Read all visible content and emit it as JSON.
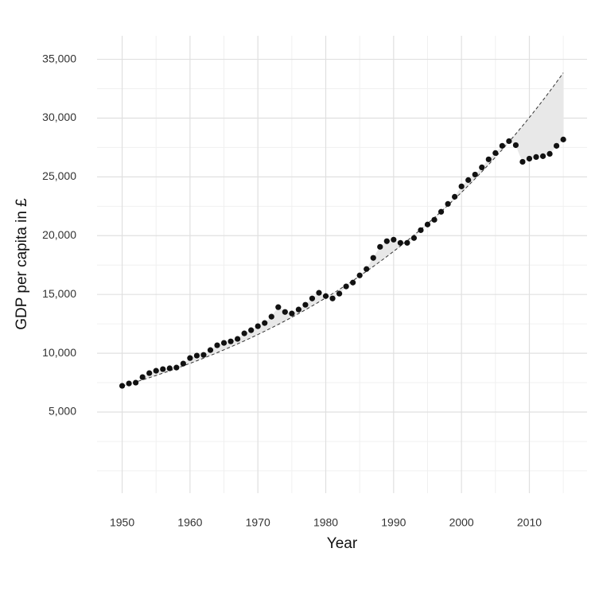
{
  "chart_data": {
    "type": "scatter",
    "x_label": "Year",
    "y_label": "GDP per capita in £",
    "x": [
      1950,
      1951,
      1952,
      1953,
      1954,
      1955,
      1956,
      1957,
      1958,
      1959,
      1960,
      1961,
      1962,
      1963,
      1964,
      1965,
      1966,
      1967,
      1968,
      1969,
      1970,
      1971,
      1972,
      1973,
      1974,
      1975,
      1976,
      1977,
      1978,
      1979,
      1980,
      1981,
      1982,
      1983,
      1984,
      1985,
      1986,
      1987,
      1988,
      1989,
      1990,
      1991,
      1992,
      1993,
      1994,
      1995,
      1996,
      1997,
      1998,
      1999,
      2000,
      2001,
      2002,
      2003,
      2004,
      2005,
      2006,
      2007,
      2008,
      2009,
      2010,
      2011,
      2012,
      2013,
      2014,
      2015
    ],
    "series": [
      {
        "color": "#111111",
        "values": [
          7230,
          7430,
          7500,
          7970,
          8310,
          8510,
          8650,
          8720,
          8780,
          9120,
          9590,
          9800,
          9860,
          10270,
          10680,
          10880,
          11010,
          11220,
          11690,
          11960,
          12300,
          12570,
          13110,
          13920,
          13510,
          13380,
          13720,
          14120,
          14660,
          15140,
          14860,
          14660,
          15070,
          15680,
          16010,
          16620,
          17160,
          18110,
          19050,
          19530,
          19660,
          19390,
          19390,
          19800,
          20470,
          20950,
          21350,
          22030,
          22700,
          23310,
          24190,
          24730,
          25200,
          25810,
          26490,
          27030,
          27640,
          28040,
          27700,
          26280,
          26550,
          26690,
          26760,
          26960,
          27640,
          28180
        ]
      },
      {
        "color": "#333333",
        "dashed": true,
        "values": [
          7200,
          7374,
          7552,
          7734,
          7920,
          8111,
          8306,
          8506,
          8711,
          8921,
          9136,
          9356,
          9582,
          9813,
          10049,
          10291,
          10539,
          10793,
          11053,
          11320,
          11593,
          11872,
          12158,
          12451,
          12751,
          13058,
          13373,
          13695,
          14025,
          14363,
          14709,
          15064,
          15427,
          15799,
          16179,
          16569,
          16969,
          17378,
          17796,
          18225,
          18665,
          19115,
          19575,
          20047,
          20530,
          21025,
          21532,
          22051,
          22582,
          23126,
          23683,
          24254,
          24838,
          25437,
          26050,
          26678,
          27320,
          27979,
          28653,
          29344,
          30051,
          30775,
          31517,
          32276,
          33054,
          33851
        ]
      }
    ],
    "ribbon_color": "#e8e8e8",
    "xlim": [
      1946.3,
      2018.5
    ],
    "xticks": [
      1950,
      1960,
      1970,
      1980,
      1990,
      2000,
      2010
    ],
    "ylim": [
      -1900,
      37000
    ],
    "yticks": [
      {
        "value": 5000,
        "label": "5,000"
      },
      {
        "value": 10000,
        "label": "10,000"
      },
      {
        "value": 15000,
        "label": "15,000"
      },
      {
        "value": 20000,
        "label": "20,000"
      },
      {
        "value": 25000,
        "label": "25,000"
      },
      {
        "value": 30000,
        "label": "30,000"
      },
      {
        "value": 35000,
        "label": "35,000"
      }
    ],
    "grid": true
  }
}
